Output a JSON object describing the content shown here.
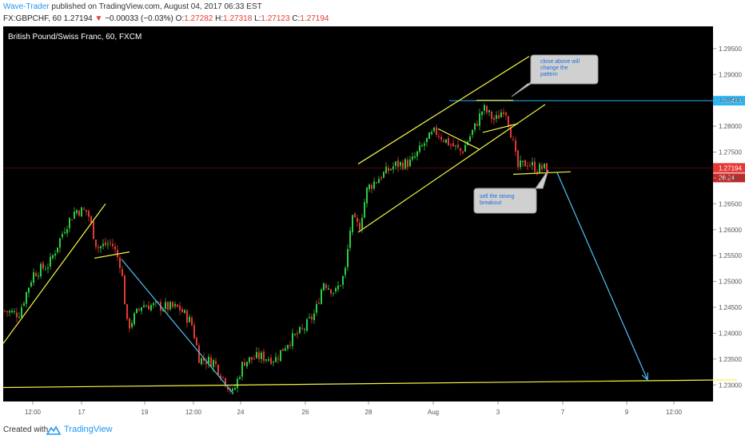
{
  "header": {
    "author": "Wave-Trader",
    "published": " published on TradingView.com, August 04, 2017 06:33 EST",
    "symbol": "FX:GBPCHF, 60",
    "last": "1.27194",
    "arrow": "▼",
    "change": "−0.00033 (−0.03%)",
    "o_label": "O:",
    "o_value": "1.27282",
    "h_label": "H:",
    "h_value": "1.27318",
    "l_label": "L:",
    "l_value": "1.27123",
    "c_label": "C:",
    "c_value": "1.27194"
  },
  "footer": {
    "created": "Created with",
    "brand": "TradingView"
  },
  "colors": {
    "background": "#000000",
    "up": "#2ecc40",
    "down": "#e53935",
    "trendline": "#f5f542",
    "arrow": "#4fc3f7",
    "hline": "#29b6f6",
    "price_line": "#b71c1c",
    "axis_text": "#555555"
  },
  "annotations": [
    {
      "id": "close-above",
      "text": [
        "close above will",
        "change the",
        "pattern"
      ]
    },
    {
      "id": "sell-breakout",
      "text": [
        "sell the strong",
        "breakout"
      ]
    }
  ],
  "chart_data": {
    "type": "candlestick",
    "title": "British Pound/Swiss Franc, 60, FXCM",
    "ylim": [
      1.2268,
      1.2993
    ],
    "y_ticks": [
      "1.29500",
      "1.29000",
      "1.28500",
      "1.28000",
      "1.27500",
      "1.27000",
      "1.26500",
      "1.26000",
      "1.25500",
      "1.25000",
      "1.24500",
      "1.24000",
      "1.23500",
      "1.23000"
    ],
    "y_tick_values": [
      1.295,
      1.29,
      1.285,
      1.28,
      1.275,
      1.27,
      1.265,
      1.26,
      1.255,
      1.25,
      1.245,
      1.24,
      1.235,
      1.23
    ],
    "x_ticks": [
      "12:00",
      "17",
      "19",
      "12:00",
      "24",
      "26",
      "28",
      "Aug",
      "3",
      "7",
      "9",
      "12:00"
    ],
    "price_label": "1.27194",
    "price_value": 1.27194,
    "countdown": "26:24",
    "hline_label": "1.28493",
    "hline_value": 1.28493,
    "path": [
      [
        0,
        1.2445
      ],
      [
        24,
        1.2437
      ],
      [
        42,
        1.2515
      ],
      [
        62,
        1.2533
      ],
      [
        82,
        1.2605
      ],
      [
        95,
        1.2638
      ],
      [
        110,
        1.2635
      ],
      [
        122,
        1.2565
      ],
      [
        140,
        1.2575
      ],
      [
        152,
        1.253
      ],
      [
        160,
        1.241
      ],
      [
        178,
        1.2455
      ],
      [
        200,
        1.2452
      ],
      [
        225,
        1.2448
      ],
      [
        240,
        1.242
      ],
      [
        250,
        1.235
      ],
      [
        268,
        1.2345
      ],
      [
        282,
        1.2308
      ],
      [
        292,
        1.2283
      ],
      [
        305,
        1.2345
      ],
      [
        325,
        1.2355
      ],
      [
        345,
        1.235
      ],
      [
        360,
        1.2382
      ],
      [
        380,
        1.2407
      ],
      [
        395,
        1.244
      ],
      [
        405,
        1.25
      ],
      [
        420,
        1.2478
      ],
      [
        432,
        1.2515
      ],
      [
        440,
        1.262
      ],
      [
        450,
        1.2605
      ],
      [
        460,
        1.268
      ],
      [
        478,
        1.2705
      ],
      [
        495,
        1.2725
      ],
      [
        515,
        1.273
      ],
      [
        532,
        1.2768
      ],
      [
        545,
        1.279
      ],
      [
        560,
        1.277
      ],
      [
        578,
        1.275
      ],
      [
        595,
        1.28
      ],
      [
        605,
        1.2835
      ],
      [
        620,
        1.281
      ],
      [
        632,
        1.2838
      ],
      [
        640,
        1.2785
      ],
      [
        648,
        1.272
      ],
      [
        660,
        1.273
      ],
      [
        672,
        1.2718
      ],
      [
        684,
        1.2719
      ]
    ],
    "trendlines": [
      {
        "name": "left-support",
        "points": [
          [
            4,
            1.238
          ],
          [
            132,
            1.265
          ]
        ],
        "color": "trendline"
      },
      {
        "name": "small-flat-1",
        "points": [
          [
            118,
            1.2545
          ],
          [
            162,
            1.2557
          ]
        ],
        "color": "trendline"
      },
      {
        "name": "channel-upper",
        "points": [
          [
            448,
            1.2727
          ],
          [
            662,
            1.2935
          ]
        ],
        "color": "trendline"
      },
      {
        "name": "channel-lower",
        "points": [
          [
            448,
            1.2595
          ],
          [
            682,
            1.2842
          ]
        ],
        "color": "trendline"
      },
      {
        "name": "channel-inner",
        "points": [
          [
            548,
            1.2795
          ],
          [
            600,
            1.2755
          ]
        ],
        "color": "trendline"
      },
      {
        "name": "top-flat",
        "points": [
          [
            596,
            1.285
          ],
          [
            642,
            1.285
          ]
        ],
        "color": "trendline"
      },
      {
        "name": "top-sub",
        "points": [
          [
            604,
            1.2788
          ],
          [
            648,
            1.2805
          ]
        ],
        "color": "trendline"
      },
      {
        "name": "breakout-flat",
        "points": [
          [
            642,
            1.2707
          ],
          [
            714,
            1.2712
          ]
        ],
        "color": "trendline"
      },
      {
        "name": "bottom-support",
        "points": [
          [
            4,
            1.2295
          ],
          [
            922,
            1.231
          ]
        ],
        "color": "trendline"
      }
    ],
    "arrows": [
      {
        "name": "decline-line",
        "points": [
          [
            152,
            1.2543
          ],
          [
            292,
            1.2283
          ]
        ],
        "head": false
      },
      {
        "name": "projection-arrow",
        "points": [
          [
            697,
            1.271
          ],
          [
            810,
            1.231
          ]
        ],
        "head": true
      }
    ]
  }
}
